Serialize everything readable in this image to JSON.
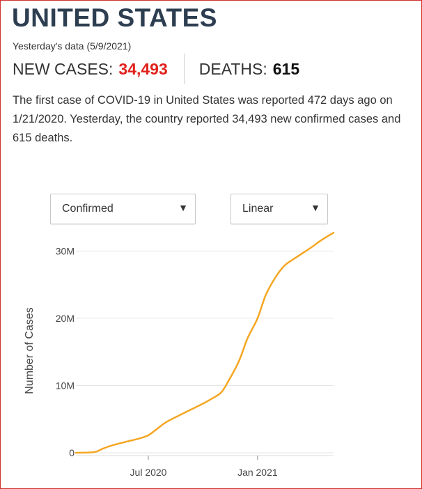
{
  "header": {
    "title": "UNITED STATES",
    "data_date": "Yesterday's data (5/9/2021)"
  },
  "stats": {
    "cases_label": "NEW CASES:",
    "cases_value": "34,493",
    "deaths_label": "DEATHS:",
    "deaths_value": "615"
  },
  "description": "The first case of COVID-19 in United States was reported 472 days ago on 1/21/2020. Yesterday, the country reported 34,493 new confirmed cases and 615 deaths.",
  "controls": {
    "type_select": {
      "value": "Confirmed",
      "arrow_icon": "triangle-down-icon"
    },
    "scale_select": {
      "value": "Linear",
      "arrow_icon": "triangle-down-icon"
    }
  },
  "colors": {
    "accent_red": "#e0211d",
    "line": "#f5a623",
    "title": "#2d3e50"
  },
  "chart_data": {
    "type": "line",
    "title": "",
    "xlabel": "",
    "ylabel": "Number of Cases",
    "x_range": [
      "2020-03-01",
      "2021-05-09"
    ],
    "ylim": [
      0,
      32000000
    ],
    "y_ticks": [
      0,
      10000000,
      20000000,
      30000000
    ],
    "y_tick_labels": [
      "0",
      "10M",
      "20M",
      "30M"
    ],
    "x_ticks": [
      "2020-07-01",
      "2021-01-01"
    ],
    "x_tick_labels": [
      "Jul 2020",
      "Jan 2021"
    ],
    "grid": true,
    "series": [
      {
        "name": "",
        "x": [
          "2020-03-01",
          "2020-04-01",
          "2020-04-15",
          "2020-05-01",
          "2020-06-01",
          "2020-06-15",
          "2020-07-01",
          "2020-07-15",
          "2020-08-01",
          "2020-09-01",
          "2020-10-01",
          "2020-10-15",
          "2020-11-01",
          "2020-11-15",
          "2020-12-01",
          "2020-12-15",
          "2021-01-01",
          "2021-01-15",
          "2021-02-01",
          "2021-02-15",
          "2021-03-01",
          "2021-03-15",
          "2021-04-01",
          "2021-04-15",
          "2021-05-01",
          "2021-05-09"
        ],
        "y": [
          100,
          100000,
          600000,
          1100000,
          1800000,
          2100000,
          2600000,
          3500000,
          4600000,
          6000000,
          7300000,
          8000000,
          9000000,
          11000000,
          13700000,
          17000000,
          20000000,
          23500000,
          26200000,
          27800000,
          28700000,
          29500000,
          30500000,
          31400000,
          32300000,
          32700000
        ]
      }
    ]
  }
}
